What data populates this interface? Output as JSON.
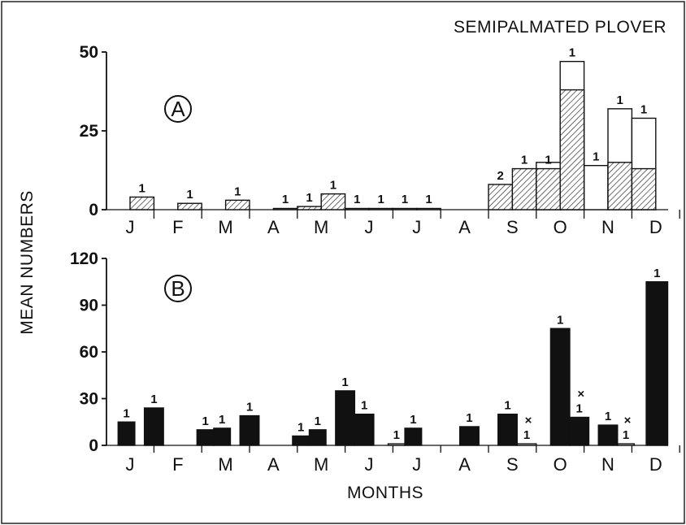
{
  "chart_data": [
    {
      "panel": "A",
      "title": "SEMIPALMATED PLOVER",
      "type": "bar",
      "ylabel": "MEAN NUMBERS",
      "ylim": [
        0,
        50
      ],
      "yticks": [
        0,
        25,
        50
      ],
      "months": [
        "J",
        "F",
        "M",
        "A",
        "M",
        "J",
        "J",
        "A",
        "S",
        "O",
        "N",
        "D"
      ],
      "series": [
        {
          "style": "hatched",
          "bars": [
            {
              "x": 0.5,
              "x_end": 1.0,
              "value": 4,
              "label": "1"
            },
            {
              "x": 1.5,
              "x_end": 2.0,
              "value": 2,
              "label": "1"
            },
            {
              "x": 2.5,
              "x_end": 3.0,
              "value": 3,
              "label": "1"
            },
            {
              "x": 4.0,
              "x_end": 4.5,
              "value": 1,
              "label": "1"
            },
            {
              "x": 4.5,
              "x_end": 5.0,
              "value": 5,
              "label": "1"
            },
            {
              "x": 8.0,
              "x_end": 8.5,
              "value": 8,
              "label": "2"
            },
            {
              "x": 8.5,
              "x_end": 9.0,
              "value": 13,
              "label": "1"
            },
            {
              "x": 9.0,
              "x_end": 9.5,
              "value": 13,
              "label": "1"
            },
            {
              "x": 9.5,
              "x_end": 10.0,
              "value": 38
            },
            {
              "x": 10.5,
              "x_end": 11.0,
              "value": 15
            },
            {
              "x": 11.0,
              "x_end": 11.5,
              "value": 13
            }
          ]
        },
        {
          "style": "open",
          "bars": [
            {
              "x": 3.5,
              "x_end": 4.0,
              "value": 0,
              "label": "1"
            },
            {
              "x": 5.0,
              "x_end": 5.5,
              "value": 0,
              "label": "1"
            },
            {
              "x": 5.5,
              "x_end": 6.0,
              "value": 0,
              "label": "1"
            },
            {
              "x": 6.0,
              "x_end": 6.5,
              "value": 0,
              "label": "1"
            },
            {
              "x": 6.5,
              "x_end": 7.0,
              "value": 0,
              "label": "1"
            },
            {
              "x": 9.0,
              "x_end": 9.5,
              "value": 15
            },
            {
              "x": 9.5,
              "x_end": 10.0,
              "value": 47,
              "label": "1"
            },
            {
              "x": 10.0,
              "x_end": 10.5,
              "value": 14,
              "label": "1"
            },
            {
              "x": 10.5,
              "x_end": 11.0,
              "value": 32,
              "label": "1"
            },
            {
              "x": 11.0,
              "x_end": 11.5,
              "value": 29,
              "label": "1"
            }
          ]
        }
      ]
    },
    {
      "panel": "B",
      "type": "bar",
      "xlabel": "MONTHS",
      "ylabel": "MEAN NUMBERS",
      "ylim": [
        0,
        120
      ],
      "yticks": [
        0,
        30,
        60,
        90,
        120
      ],
      "months": [
        "J",
        "F",
        "M",
        "A",
        "M",
        "J",
        "J",
        "A",
        "S",
        "O",
        "N",
        "D"
      ],
      "series": [
        {
          "style": "solid",
          "bars": [
            {
              "x": 0.25,
              "x_end": 0.6,
              "value": 15,
              "label": "1"
            },
            {
              "x": 0.8,
              "x_end": 1.2,
              "value": 24,
              "label": "1"
            },
            {
              "x": 1.9,
              "x_end": 2.25,
              "value": 10,
              "label": "1"
            },
            {
              "x": 2.25,
              "x_end": 2.6,
              "value": 11,
              "label": "1"
            },
            {
              "x": 2.8,
              "x_end": 3.2,
              "value": 19,
              "label": "1"
            },
            {
              "x": 3.9,
              "x_end": 4.25,
              "value": 6,
              "label": "1"
            },
            {
              "x": 4.25,
              "x_end": 4.6,
              "value": 10,
              "label": "1"
            },
            {
              "x": 4.8,
              "x_end": 5.2,
              "value": 35,
              "label": "1"
            },
            {
              "x": 5.2,
              "x_end": 5.6,
              "value": 20,
              "label": "1"
            },
            {
              "x": 6.25,
              "x_end": 6.6,
              "value": 11,
              "label": "1"
            },
            {
              "x": 7.4,
              "x_end": 7.8,
              "value": 12,
              "label": "1"
            },
            {
              "x": 8.2,
              "x_end": 8.6,
              "value": 20,
              "label": "1"
            },
            {
              "x": 9.3,
              "x_end": 9.7,
              "value": 75,
              "label": "1"
            },
            {
              "x": 9.7,
              "x_end": 10.1,
              "value": 18,
              "label": "1",
              "mark": "×"
            },
            {
              "x": 10.3,
              "x_end": 10.7,
              "value": 13,
              "label": "1"
            },
            {
              "x": 11.3,
              "x_end": 11.75,
              "value": 105,
              "label": "1"
            }
          ]
        },
        {
          "style": "open",
          "bars": [
            {
              "x": 5.9,
              "x_end": 6.25,
              "value": 1,
              "label": "1"
            },
            {
              "x": 8.6,
              "x_end": 9.0,
              "value": 1,
              "label": "1",
              "mark": "×"
            },
            {
              "x": 10.7,
              "x_end": 11.05,
              "value": 1,
              "label": "1",
              "mark": "×"
            }
          ]
        }
      ]
    }
  ]
}
